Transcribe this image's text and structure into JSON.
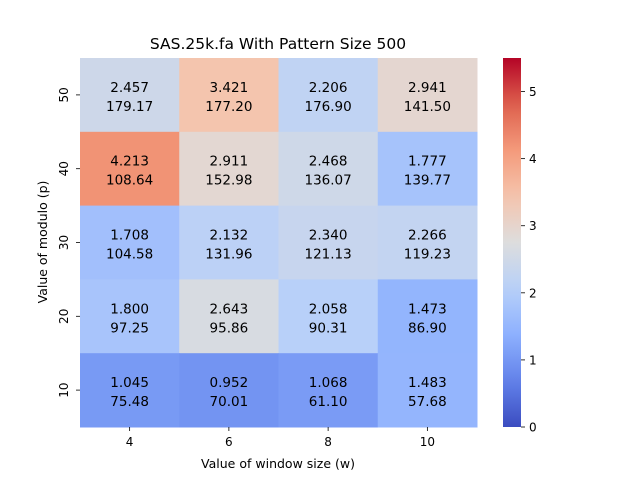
{
  "chart_data": {
    "type": "heatmap",
    "title": "SAS.25k.fa With Pattern Size 500",
    "xlabel": "Value of window size (w)",
    "ylabel": "Value of modulo (p)",
    "x_categories": [
      "4",
      "6",
      "8",
      "10"
    ],
    "y_categories": [
      "50",
      "40",
      "30",
      "20",
      "10"
    ],
    "values": [
      [
        2.457,
        3.421,
        2.206,
        2.941
      ],
      [
        4.213,
        2.911,
        2.468,
        1.777
      ],
      [
        1.708,
        2.132,
        2.34,
        2.266
      ],
      [
        1.8,
        2.643,
        2.058,
        1.473
      ],
      [
        1.045,
        0.952,
        1.068,
        1.483
      ]
    ],
    "value_labels": [
      [
        "2.457",
        "3.421",
        "2.206",
        "2.941"
      ],
      [
        "4.213",
        "2.911",
        "2.468",
        "1.777"
      ],
      [
        "1.708",
        "2.132",
        "2.340",
        "2.266"
      ],
      [
        "1.800",
        "2.643",
        "2.058",
        "1.473"
      ],
      [
        "1.045",
        "0.952",
        "1.068",
        "1.483"
      ]
    ],
    "secondary_labels": [
      [
        "179.17",
        "177.20",
        "176.90",
        "141.50"
      ],
      [
        "108.64",
        "152.98",
        "136.07",
        "139.77"
      ],
      [
        "104.58",
        "131.96",
        "121.13",
        "119.23"
      ],
      [
        "97.25",
        "95.86",
        "90.31",
        "86.90"
      ],
      [
        "75.48",
        "70.01",
        "61.10",
        "57.68"
      ]
    ],
    "colorbar": {
      "range": [
        0,
        5.5
      ],
      "ticks": [
        "0",
        "1",
        "2",
        "3",
        "4",
        "5"
      ],
      "colormap": "coolwarm"
    },
    "legend": "colorbar-right",
    "grid": false
  }
}
